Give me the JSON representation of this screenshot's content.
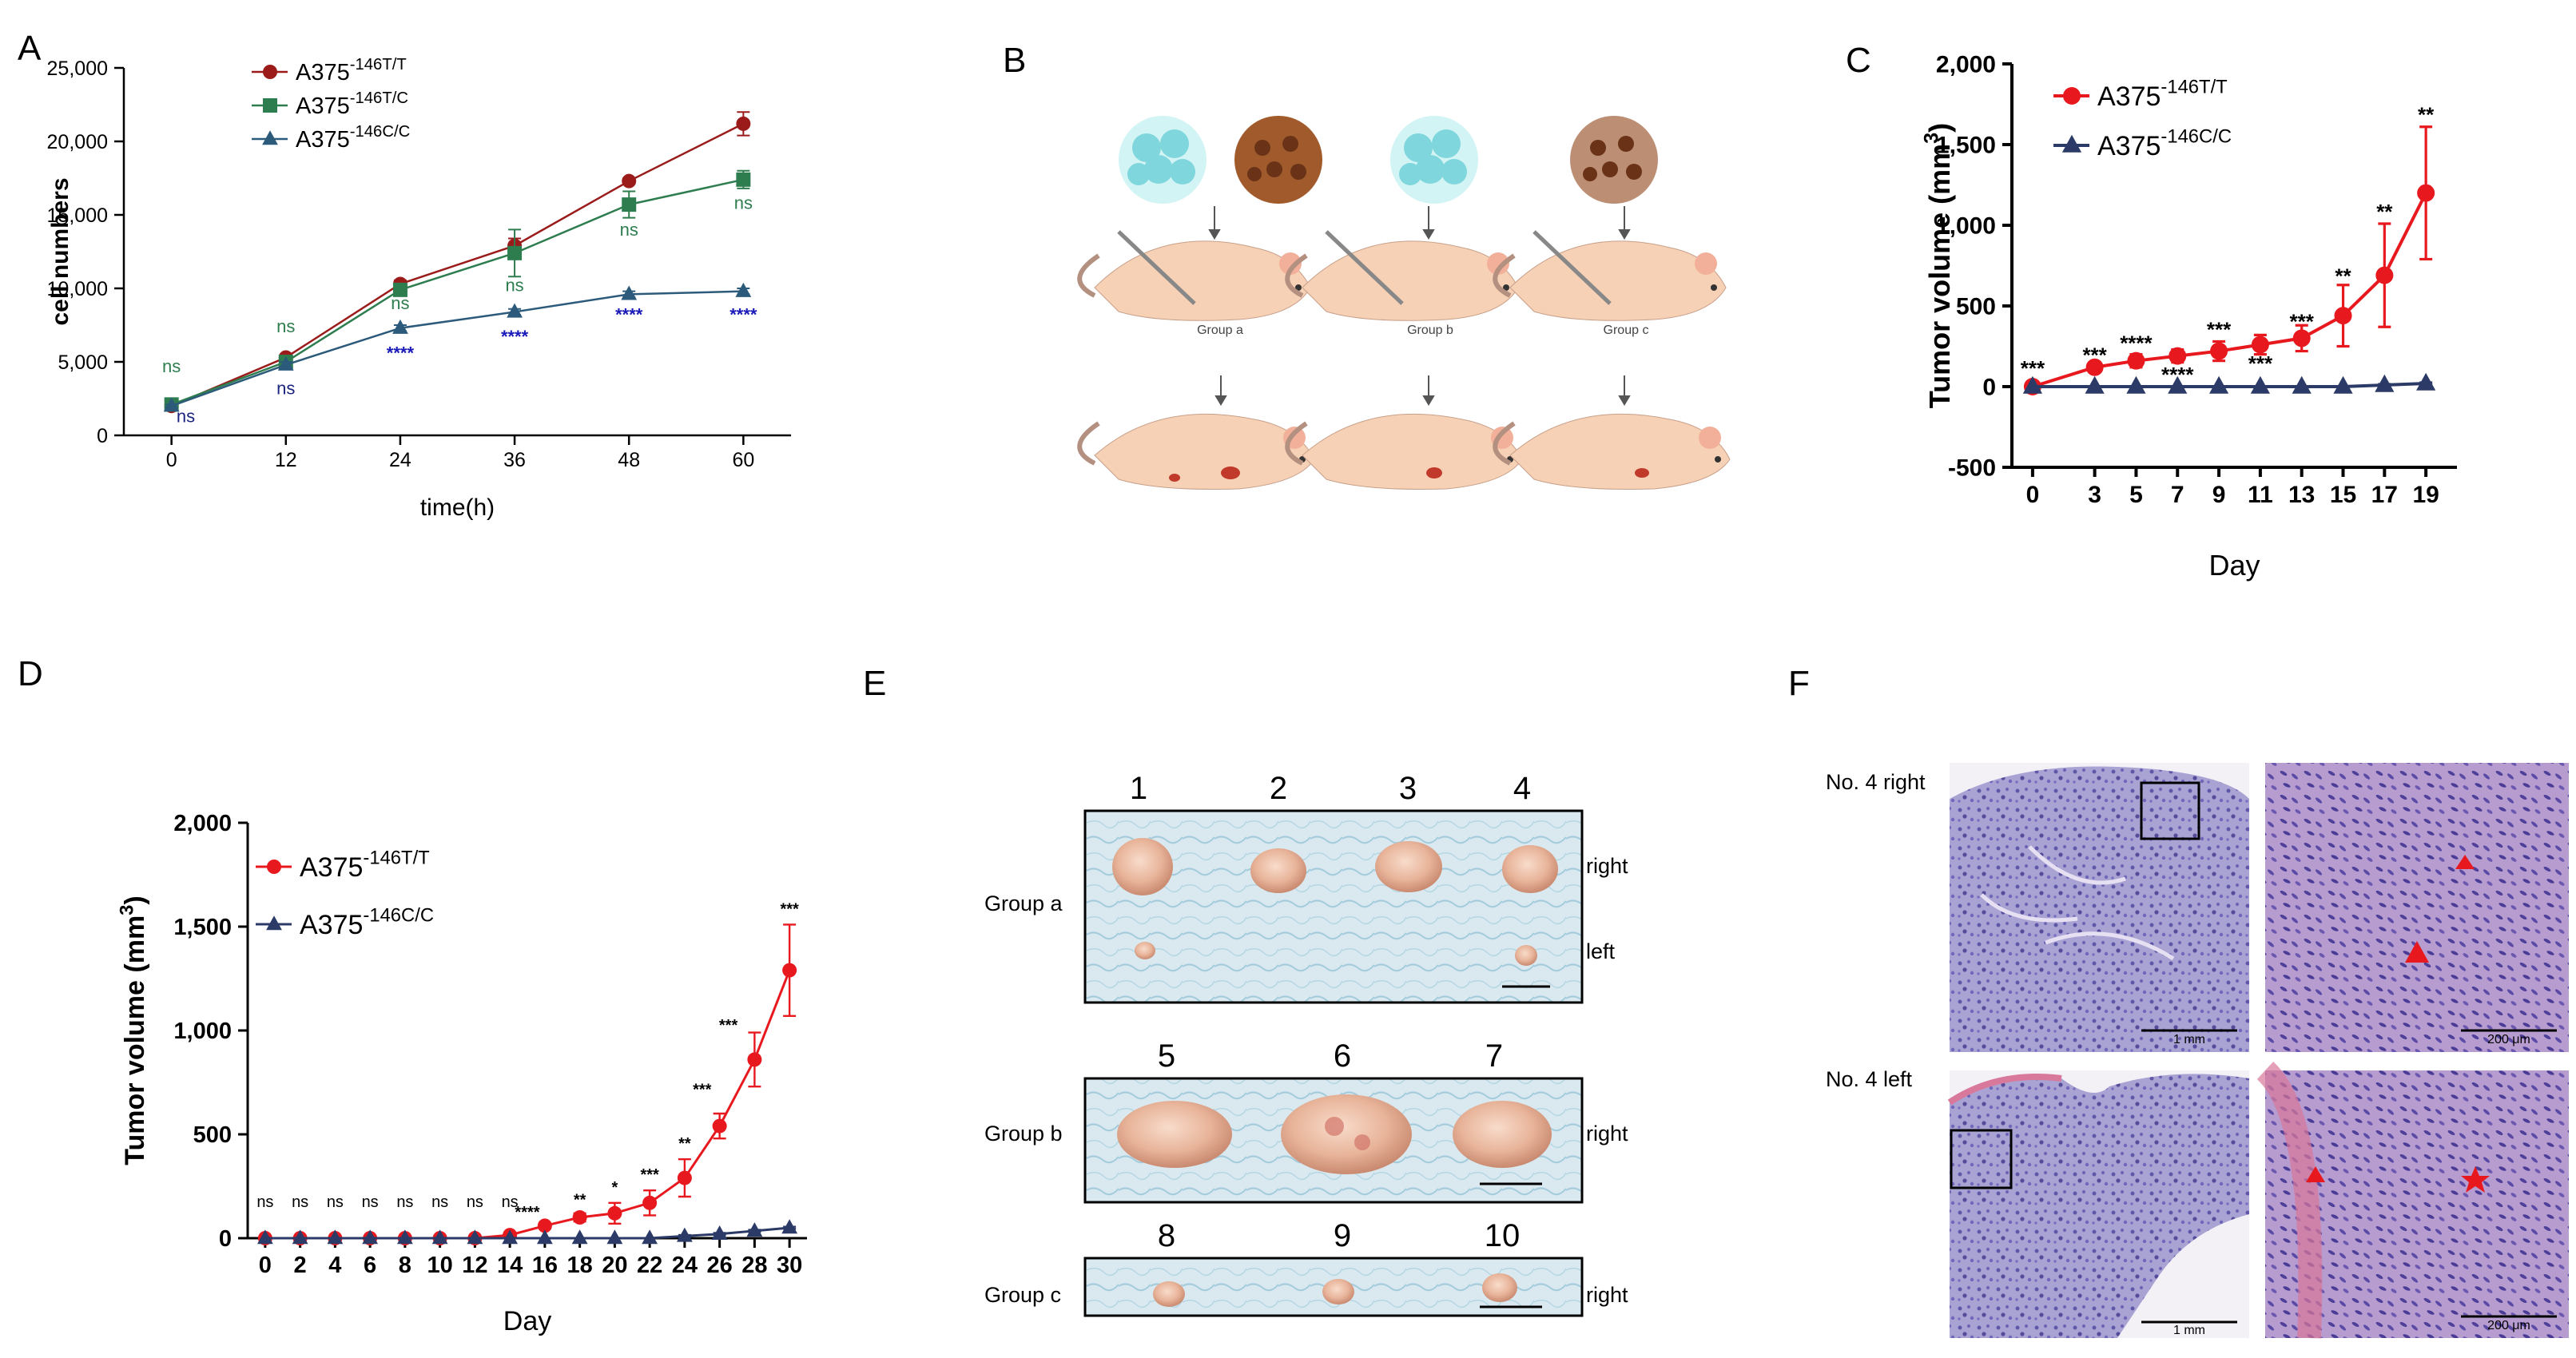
{
  "panel_labels": {
    "A": "A",
    "B": "B",
    "C": "C",
    "D": "D",
    "E": "E",
    "F": "F"
  },
  "chart_data": [
    {
      "id": "A",
      "type": "line",
      "xlabel": "time(h)",
      "ylabel": "cell numbers",
      "x": [
        0,
        12,
        24,
        36,
        48,
        60
      ],
      "xticks": [
        "0",
        "12",
        "24",
        "36",
        "48",
        "60"
      ],
      "ylim": [
        0,
        25000
      ],
      "yticks": [
        "0",
        "5,000",
        "10,000",
        "15,000",
        "20,000",
        "25,000"
      ],
      "ytick_values": [
        0,
        5000,
        10000,
        15000,
        20000,
        25000
      ],
      "series": [
        {
          "name": "A375",
          "sup": "-146T/T",
          "color": "#9b1b1b",
          "marker": "circle",
          "values": [
            2000,
            5300,
            10300,
            12900,
            17300,
            21200
          ],
          "err": [
            150,
            200,
            250,
            500,
            200,
            800
          ]
        },
        {
          "name": "A375",
          "sup": "-146T/C",
          "color": "#2e7d4f",
          "marker": "square",
          "values": [
            2100,
            5000,
            9900,
            12400,
            15700,
            17400
          ],
          "err": [
            150,
            200,
            400,
            1600,
            900,
            600
          ]
        },
        {
          "name": "A375",
          "sup": "-146C/C",
          "color": "#2c5a7a",
          "marker": "triangle",
          "values": [
            2000,
            4800,
            7300,
            8400,
            9600,
            9800
          ],
          "err": [
            100,
            200,
            200,
            200,
            200,
            200
          ]
        }
      ],
      "annotations": [
        {
          "text": "ns",
          "x": 0,
          "y": 4300,
          "color": "#2e7d4f"
        },
        {
          "text": "ns",
          "x": 1.5,
          "y": 900,
          "color": "#1a237e"
        },
        {
          "text": "ns",
          "x": 12,
          "y": 7000,
          "color": "#2e7d4f"
        },
        {
          "text": "ns",
          "x": 12,
          "y": 2800,
          "color": "#1a237e"
        },
        {
          "text": "ns",
          "x": 24,
          "y": 8600,
          "color": "#2e7d4f"
        },
        {
          "text": "****",
          "x": 24,
          "y": 5200,
          "color": "#1a1ab8"
        },
        {
          "text": "ns",
          "x": 36,
          "y": 9800,
          "color": "#2e7d4f"
        },
        {
          "text": "****",
          "x": 36,
          "y": 6300,
          "color": "#1a1ab8"
        },
        {
          "text": "ns",
          "x": 48,
          "y": 13600,
          "color": "#2e7d4f"
        },
        {
          "text": "****",
          "x": 48,
          "y": 7800,
          "color": "#1a1ab8"
        },
        {
          "text": "ns",
          "x": 60,
          "y": 15400,
          "color": "#2e7d4f"
        },
        {
          "text": "****",
          "x": 60,
          "y": 7800,
          "color": "#1a1ab8"
        }
      ]
    },
    {
      "id": "C",
      "type": "line",
      "xlabel": "Day",
      "ylabel": "Tumor volume (mm3)",
      "x": [
        0,
        3,
        5,
        7,
        9,
        11,
        13,
        15,
        17,
        19
      ],
      "xticks": [
        "0",
        "3",
        "5",
        "7",
        "9",
        "11",
        "13",
        "15",
        "17",
        "19"
      ],
      "ylim": [
        -500,
        2000
      ],
      "yticks": [
        "-500",
        "0",
        "500",
        "1,000",
        "1,500",
        "2,000"
      ],
      "ytick_values": [
        -500,
        0,
        500,
        1000,
        1500,
        2000
      ],
      "series": [
        {
          "name": "A375",
          "sup": "-146T/T",
          "color": "#e8191e",
          "marker": "circle",
          "values": [
            0,
            120,
            160,
            190,
            220,
            260,
            300,
            440,
            690,
            1200
          ],
          "err": [
            10,
            30,
            40,
            40,
            60,
            60,
            80,
            190,
            320,
            410
          ]
        },
        {
          "name": "A375",
          "sup": "-146C/C",
          "color": "#2b3a67",
          "marker": "triangle",
          "values": [
            0,
            0,
            0,
            0,
            0,
            0,
            0,
            0,
            10,
            20
          ],
          "err": [
            0,
            0,
            0,
            0,
            0,
            0,
            0,
            0,
            5,
            5
          ]
        }
      ],
      "annotations": [
        {
          "text": "***",
          "x": 0,
          "y": 70
        },
        {
          "text": "***",
          "x": 3,
          "y": 150
        },
        {
          "text": "****",
          "x": 5,
          "y": 225
        },
        {
          "text": "****",
          "x": 7,
          "y": 30
        },
        {
          "text": "***",
          "x": 9,
          "y": 310
        },
        {
          "text": "***",
          "x": 11,
          "y": 100
        },
        {
          "text": "***",
          "x": 13,
          "y": 360
        },
        {
          "text": "**",
          "x": 15,
          "y": 640
        },
        {
          "text": "**",
          "x": 17,
          "y": 1040
        },
        {
          "text": "**",
          "x": 19,
          "y": 1640
        }
      ]
    },
    {
      "id": "D",
      "type": "line",
      "xlabel": "Day",
      "ylabel": "Tumor volume (mm3)",
      "x": [
        0,
        2,
        4,
        6,
        8,
        10,
        12,
        14,
        16,
        18,
        20,
        22,
        24,
        26,
        28,
        30
      ],
      "xticks": [
        "0",
        "2",
        "4",
        "6",
        "8",
        "10",
        "12",
        "14",
        "16",
        "18",
        "20",
        "22",
        "24",
        "26",
        "28",
        "30"
      ],
      "ylim": [
        0,
        2000
      ],
      "yticks": [
        "0",
        "500",
        "1,000",
        "1,500",
        "2,000"
      ],
      "ytick_values": [
        0,
        500,
        1000,
        1500,
        2000
      ],
      "series": [
        {
          "name": "A375",
          "sup": "-146T/T",
          "color": "#e8191e",
          "marker": "circle",
          "values": [
            0,
            0,
            0,
            0,
            0,
            0,
            0,
            15,
            60,
            100,
            120,
            170,
            290,
            540,
            860,
            1290
          ],
          "err": [
            0,
            0,
            0,
            0,
            0,
            0,
            0,
            5,
            10,
            20,
            50,
            60,
            90,
            60,
            130,
            220
          ]
        },
        {
          "name": "A375",
          "sup": "-146C/C",
          "color": "#2b3a67",
          "marker": "triangle",
          "values": [
            0,
            0,
            0,
            0,
            0,
            0,
            0,
            0,
            0,
            0,
            0,
            0,
            10,
            20,
            35,
            50
          ],
          "err": [
            0,
            0,
            0,
            0,
            0,
            0,
            0,
            0,
            0,
            0,
            0,
            0,
            5,
            5,
            5,
            5
          ]
        }
      ],
      "annotations": [
        {
          "text": "ns",
          "x": 0,
          "y": 150
        },
        {
          "text": "ns",
          "x": 2,
          "y": 150
        },
        {
          "text": "ns",
          "x": 4,
          "y": 150
        },
        {
          "text": "ns",
          "x": 6,
          "y": 150
        },
        {
          "text": "ns",
          "x": 8,
          "y": 150
        },
        {
          "text": "ns",
          "x": 10,
          "y": 150
        },
        {
          "text": "ns",
          "x": 12,
          "y": 150
        },
        {
          "text": "ns",
          "x": 14,
          "y": 150
        },
        {
          "text": "****",
          "x": 15,
          "y": 100
        },
        {
          "text": "**",
          "x": 18,
          "y": 160
        },
        {
          "text": "*",
          "x": 20,
          "y": 220
        },
        {
          "text": "***",
          "x": 22,
          "y": 280
        },
        {
          "text": "**",
          "x": 24,
          "y": 430
        },
        {
          "text": "***",
          "x": 25,
          "y": 690
        },
        {
          "text": "***",
          "x": 26.5,
          "y": 1000
        },
        {
          "text": "***",
          "x": 30,
          "y": 1560
        }
      ]
    }
  ],
  "panel_B": {
    "groups": [
      "Group a",
      "Group b",
      "Group c"
    ]
  },
  "panel_E": {
    "groups": [
      {
        "label": "Group a",
        "numbers": [
          "1",
          "2",
          "3",
          "4"
        ],
        "rows": [
          "right",
          "left"
        ]
      },
      {
        "label": "Group b",
        "numbers": [
          "5",
          "6",
          "7"
        ],
        "rows": [
          "right"
        ]
      },
      {
        "label": "Group c",
        "numbers": [
          "8",
          "9",
          "10"
        ],
        "rows": [
          "right"
        ]
      }
    ]
  },
  "panel_F": {
    "rows": [
      {
        "label": "No. 4 right",
        "scale_low": "1 mm",
        "scale_high": "200 μm"
      },
      {
        "label": "No. 4 left",
        "scale_low": "1 mm",
        "scale_high": "200 μm"
      }
    ]
  }
}
